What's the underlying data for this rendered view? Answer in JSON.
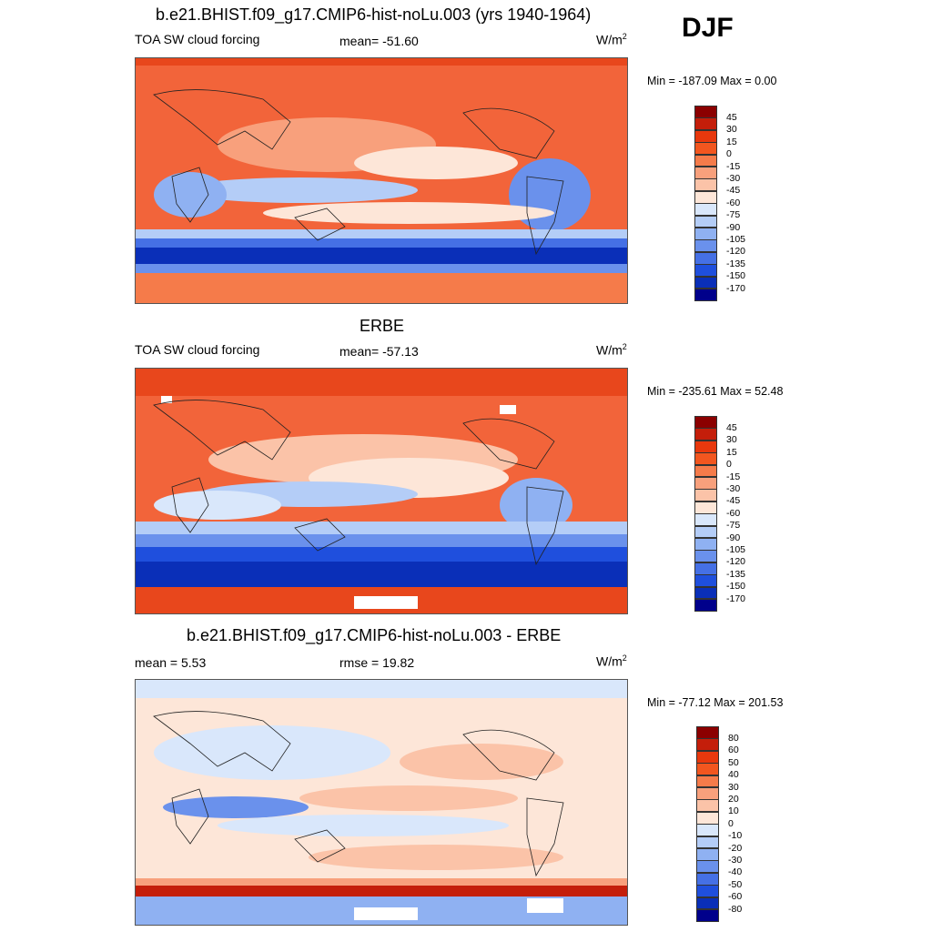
{
  "season": "DJF",
  "units_base": "W/m",
  "units_exp": "2",
  "panels": [
    {
      "title": "b.e21.BHIST.f09_g17.CMIP6-hist-noLu.003 (yrs 1940-1964)",
      "left_label": "TOA SW cloud forcing",
      "center_label": "mean= -51.60",
      "minmax": "Min = -187.09 Max =   0.00"
    },
    {
      "title": "ERBE",
      "left_label": "TOA SW cloud forcing",
      "center_label": "mean= -57.13",
      "minmax": "Min = -235.61 Max =  52.48"
    },
    {
      "title": "b.e21.BHIST.f09_g17.CMIP6-hist-noLu.003 - ERBE",
      "left_label": "mean =   5.53",
      "center_label": "rmse =  19.82",
      "minmax": "Min = -77.12 Max = 201.53"
    }
  ],
  "chart_data": [
    {
      "type": "heatmap",
      "title": "b.e21.BHIST.f09_g17.CMIP6-hist-noLu.003 (yrs 1940-1964)",
      "variable": "TOA SW cloud forcing",
      "units": "W/m2",
      "mean": -51.6,
      "min": -187.09,
      "max": 0.0,
      "levels": [
        "45",
        "30",
        "15",
        "0",
        "-15",
        "-30",
        "-45",
        "-60",
        "-75",
        "-90",
        "-105",
        "-120",
        "-135",
        "-150",
        "-170"
      ],
      "colors": [
        "#8b0000",
        "#c41e0a",
        "#e8380d",
        "#f2561f",
        "#f57b4a",
        "#f8a07c",
        "#fbc3a8",
        "#fde6d8",
        "#d9e7fb",
        "#b4cdf7",
        "#8fb1f2",
        "#6a91ec",
        "#4570e5",
        "#1f4fdd",
        "#0a2fb8",
        "#00008b"
      ]
    },
    {
      "type": "heatmap",
      "title": "ERBE",
      "variable": "TOA SW cloud forcing",
      "units": "W/m2",
      "mean": -57.13,
      "min": -235.61,
      "max": 52.48,
      "levels": [
        "45",
        "30",
        "15",
        "0",
        "-15",
        "-30",
        "-45",
        "-60",
        "-75",
        "-90",
        "-105",
        "-120",
        "-135",
        "-150",
        "-170"
      ],
      "colors": [
        "#8b0000",
        "#c41e0a",
        "#e8380d",
        "#f2561f",
        "#f57b4a",
        "#f8a07c",
        "#fbc3a8",
        "#fde6d8",
        "#d9e7fb",
        "#b4cdf7",
        "#8fb1f2",
        "#6a91ec",
        "#4570e5",
        "#1f4fdd",
        "#0a2fb8",
        "#00008b"
      ]
    },
    {
      "type": "heatmap",
      "title": "b.e21.BHIST.f09_g17.CMIP6-hist-noLu.003 - ERBE",
      "units": "W/m2",
      "mean": 5.53,
      "rmse": 19.82,
      "min": -77.12,
      "max": 201.53,
      "levels": [
        "80",
        "60",
        "50",
        "40",
        "30",
        "20",
        "10",
        "0",
        "-10",
        "-20",
        "-30",
        "-40",
        "-50",
        "-60",
        "-80"
      ],
      "colors": [
        "#8b0000",
        "#c41e0a",
        "#e8380d",
        "#f2561f",
        "#f57b4a",
        "#f8a07c",
        "#fbc3a8",
        "#fde6d8",
        "#d9e7fb",
        "#b4cdf7",
        "#8fb1f2",
        "#6a91ec",
        "#4570e5",
        "#1f4fdd",
        "#0a2fb8",
        "#00008b"
      ]
    }
  ]
}
